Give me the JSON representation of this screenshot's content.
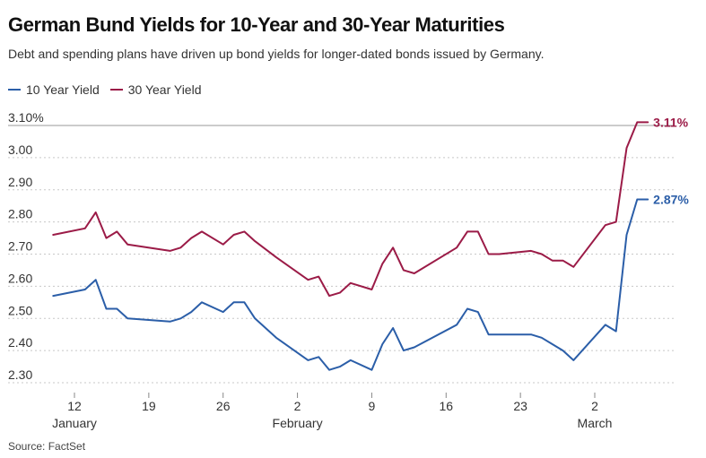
{
  "header": {
    "title": "German Bund Yields for 10-Year and 30-Year Maturities",
    "subtitle": "Debt and spending plans have driven up bond yields for longer-dated bonds issued by Germany."
  },
  "legend": [
    {
      "label": "10 Year Yield",
      "color": "#2b5ea8"
    },
    {
      "label": "30 Year Yield",
      "color": "#9b1b47"
    }
  ],
  "footer": {
    "source": "Source: FactSet"
  },
  "chart_data": {
    "type": "line",
    "title": "German Bund Yields for 10-Year and 30-Year Maturities",
    "xlabel": "",
    "ylabel": "",
    "x_unit": "days since Jan 1",
    "xlim": [
      9,
      72
    ],
    "ylim": [
      2.28,
      3.12
    ],
    "yticks": [
      {
        "value": 3.1,
        "label": "3.10%"
      },
      {
        "value": 3.0,
        "label": "3.00"
      },
      {
        "value": 2.9,
        "label": "2.90"
      },
      {
        "value": 2.8,
        "label": "2.80"
      },
      {
        "value": 2.7,
        "label": "2.70"
      },
      {
        "value": 2.6,
        "label": "2.60"
      },
      {
        "value": 2.5,
        "label": "2.50"
      },
      {
        "value": 2.4,
        "label": "2.40"
      },
      {
        "value": 2.3,
        "label": "2.30"
      }
    ],
    "xticks": [
      {
        "value": 12,
        "label": "12"
      },
      {
        "value": 19,
        "label": "19"
      },
      {
        "value": 26,
        "label": "26"
      },
      {
        "value": 33,
        "label": "2"
      },
      {
        "value": 40,
        "label": "9"
      },
      {
        "value": 47,
        "label": "16"
      },
      {
        "value": 54,
        "label": "23"
      },
      {
        "value": 61,
        "label": "2"
      }
    ],
    "month_labels": [
      {
        "value": 12,
        "label": "January"
      },
      {
        "value": 33,
        "label": "February"
      },
      {
        "value": 61,
        "label": "March"
      }
    ],
    "grid": "horizontal",
    "series": [
      {
        "name": "10 Year Yield",
        "color": "#2b5ea8",
        "end_label": "2.87%",
        "x": [
          10,
          13,
          14,
          15,
          16,
          17,
          21,
          22,
          23,
          24,
          26,
          27,
          28,
          29,
          31,
          34,
          35,
          36,
          37,
          38,
          40,
          41,
          42,
          43,
          44,
          48,
          49,
          50,
          51,
          52,
          55,
          56,
          57,
          58,
          59,
          62,
          63,
          64,
          65,
          66
        ],
        "values": [
          2.57,
          2.59,
          2.62,
          2.53,
          2.53,
          2.5,
          2.49,
          2.5,
          2.52,
          2.55,
          2.52,
          2.55,
          2.55,
          2.5,
          2.44,
          2.37,
          2.38,
          2.34,
          2.35,
          2.37,
          2.34,
          2.42,
          2.47,
          2.4,
          2.41,
          2.48,
          2.53,
          2.52,
          2.45,
          2.45,
          2.45,
          2.44,
          2.42,
          2.4,
          2.37,
          2.48,
          2.46,
          2.76,
          2.87,
          2.87
        ]
      },
      {
        "name": "30 Year Yield",
        "color": "#9b1b47",
        "end_label": "3.11%",
        "x": [
          10,
          13,
          14,
          15,
          16,
          17,
          21,
          22,
          23,
          24,
          26,
          27,
          28,
          29,
          31,
          34,
          35,
          36,
          37,
          38,
          40,
          41,
          42,
          43,
          44,
          48,
          49,
          50,
          51,
          52,
          55,
          56,
          57,
          58,
          59,
          62,
          63,
          64,
          65,
          66
        ],
        "values": [
          2.76,
          2.78,
          2.83,
          2.75,
          2.77,
          2.73,
          2.71,
          2.72,
          2.75,
          2.77,
          2.73,
          2.76,
          2.77,
          2.74,
          2.69,
          2.62,
          2.63,
          2.57,
          2.58,
          2.61,
          2.59,
          2.67,
          2.72,
          2.65,
          2.64,
          2.72,
          2.77,
          2.77,
          2.7,
          2.7,
          2.71,
          2.7,
          2.68,
          2.68,
          2.66,
          2.79,
          2.8,
          3.03,
          3.11,
          3.11
        ]
      }
    ]
  }
}
